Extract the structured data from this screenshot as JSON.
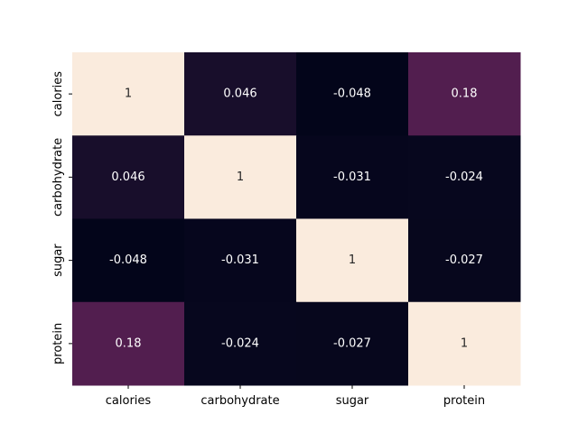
{
  "chart_data": {
    "type": "heatmap",
    "title": "",
    "xlabel": "",
    "ylabel": "",
    "x_categories": [
      "calories",
      "carbohydrate",
      "sugar",
      "protein"
    ],
    "y_categories": [
      "calories",
      "carbohydrate",
      "sugar",
      "protein"
    ],
    "values": [
      [
        1,
        0.046,
        -0.048,
        0.18
      ],
      [
        0.046,
        1,
        -0.031,
        -0.024
      ],
      [
        -0.048,
        -0.031,
        1,
        -0.027
      ],
      [
        0.18,
        -0.024,
        -0.027,
        1
      ]
    ],
    "cell_labels": [
      [
        "1",
        "0.046",
        "-0.048",
        "0.18"
      ],
      [
        "0.046",
        "1",
        "-0.031",
        "-0.024"
      ],
      [
        "-0.048",
        "-0.031",
        "1",
        "-0.027"
      ],
      [
        "0.18",
        "-0.024",
        "-0.027",
        "1"
      ]
    ],
    "color_range": [
      -0.048,
      1
    ],
    "colormap": "rocket",
    "colorbar": false,
    "grid": false
  }
}
